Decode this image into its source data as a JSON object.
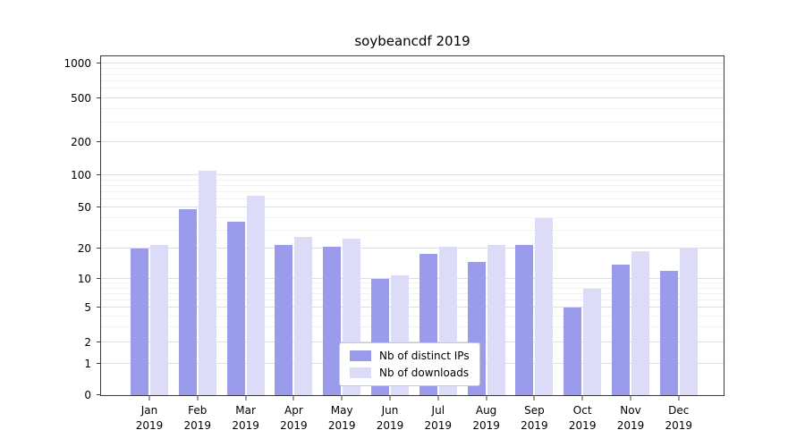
{
  "chart_data": {
    "type": "bar",
    "title": "soybeancdf 2019",
    "categories": [
      "Jan",
      "Feb",
      "Mar",
      "Apr",
      "May",
      "Jun",
      "Jul",
      "Aug",
      "Sep",
      "Oct",
      "Nov",
      "Dec"
    ],
    "year_label": "2019",
    "series": [
      {
        "name": "Nb of distinct IPs",
        "color": "#9b9bec",
        "values": [
          20,
          48,
          37,
          22,
          21,
          10,
          18,
          15,
          22,
          5,
          14,
          12
        ]
      },
      {
        "name": "Nb of downloads",
        "color": "#dcdcf8",
        "values": [
          22,
          110,
          65,
          26,
          25,
          11,
          21,
          22,
          40,
          8,
          19,
          20
        ]
      }
    ],
    "yscale": "symlog",
    "yticks": [
      0,
      1,
      2,
      5,
      10,
      20,
      50,
      100,
      200,
      500,
      1000
    ],
    "ylim": [
      0,
      1000
    ],
    "grid": true,
    "legend_position": "lower center"
  }
}
